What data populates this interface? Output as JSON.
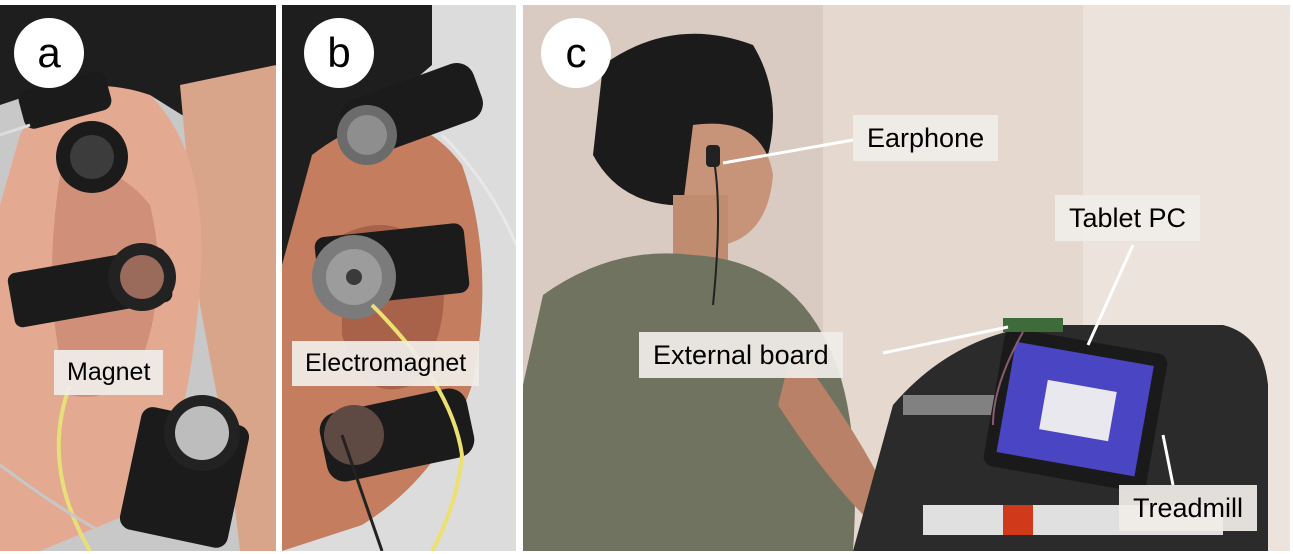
{
  "panels": {
    "a": {
      "letter": "a",
      "label": "Magnet"
    },
    "b": {
      "letter": "b",
      "label": "Electromagnet"
    },
    "c": {
      "letter": "c",
      "labels": {
        "earphone": "Earphone",
        "tablet": "Tablet PC",
        "board": "External board",
        "treadmill": "Treadmill"
      }
    }
  }
}
